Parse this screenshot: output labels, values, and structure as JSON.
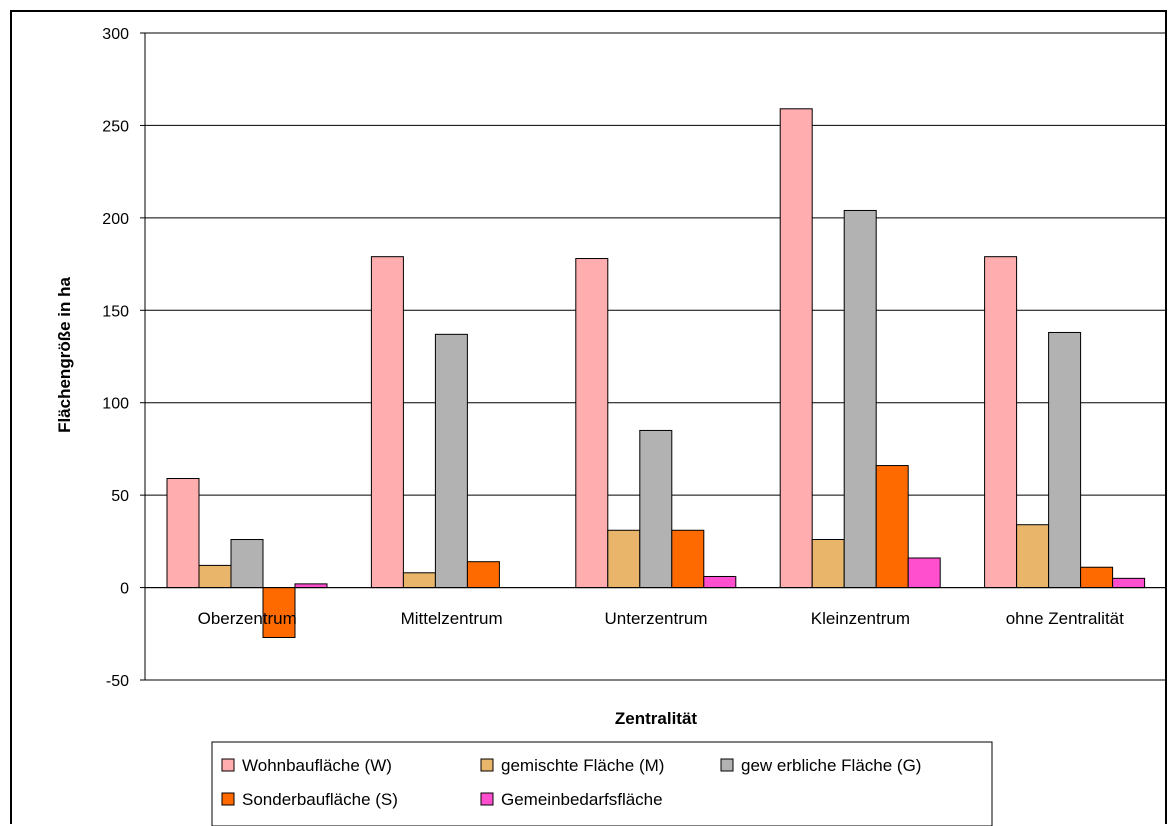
{
  "chart_data": {
    "type": "bar",
    "title": "",
    "xlabel": "Zentralität",
    "ylabel": "Flächengröße in ha",
    "ylim": [
      -50,
      300
    ],
    "yticks": [
      "300",
      "250",
      "200",
      "150",
      "100",
      "50",
      "0",
      "-50"
    ],
    "ytick_values": [
      300,
      250,
      200,
      150,
      100,
      50,
      0,
      -50
    ],
    "grid": true,
    "legend_position": "bottom",
    "categories": [
      "Oberzentrum",
      "Mittelzentrum",
      "Unterzentrum",
      "Kleinzentrum",
      "ohne Zentralität"
    ],
    "series": [
      {
        "name": "Wohnbaufläche (W)",
        "color": "#ffadae",
        "values": [
          59,
          179,
          178,
          259,
          179
        ]
      },
      {
        "name": "gemischte Fläche (M)",
        "color": "#e8b56b",
        "values": [
          12,
          8,
          31,
          26,
          34
        ]
      },
      {
        "name": "gew erbliche Fläche (G)",
        "color": "#b2b2b2",
        "values": [
          26,
          137,
          85,
          204,
          138
        ]
      },
      {
        "name": "Sonderbaufläche (S)",
        "color": "#ff6a00",
        "values": [
          -27,
          14,
          31,
          66,
          11
        ]
      },
      {
        "name": "Gemeinbedarfsfläche",
        "color": "#ff4fcf",
        "values": [
          2,
          0,
          6,
          16,
          5
        ]
      }
    ]
  }
}
